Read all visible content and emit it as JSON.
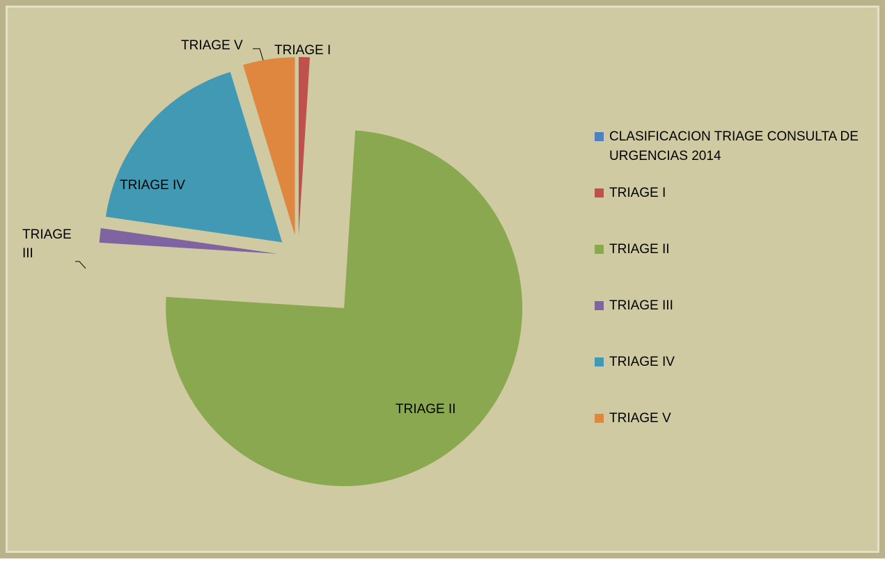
{
  "chart_data": {
    "type": "pie",
    "categories": [
      "CLASIFICACION TRIAGE CONSULTA DE URGENCIAS 2014",
      "TRIAGE I",
      "TRIAGE II",
      "TRIAGE III",
      "TRIAGE IV",
      "TRIAGE V"
    ],
    "values": [
      0,
      1,
      75,
      1.3,
      18,
      4.7
    ],
    "colors": [
      "#4f81bd",
      "#c0504d",
      "#8aa84f",
      "#8064a2",
      "#4299b4",
      "#e0873f"
    ],
    "legend": "right"
  }
}
